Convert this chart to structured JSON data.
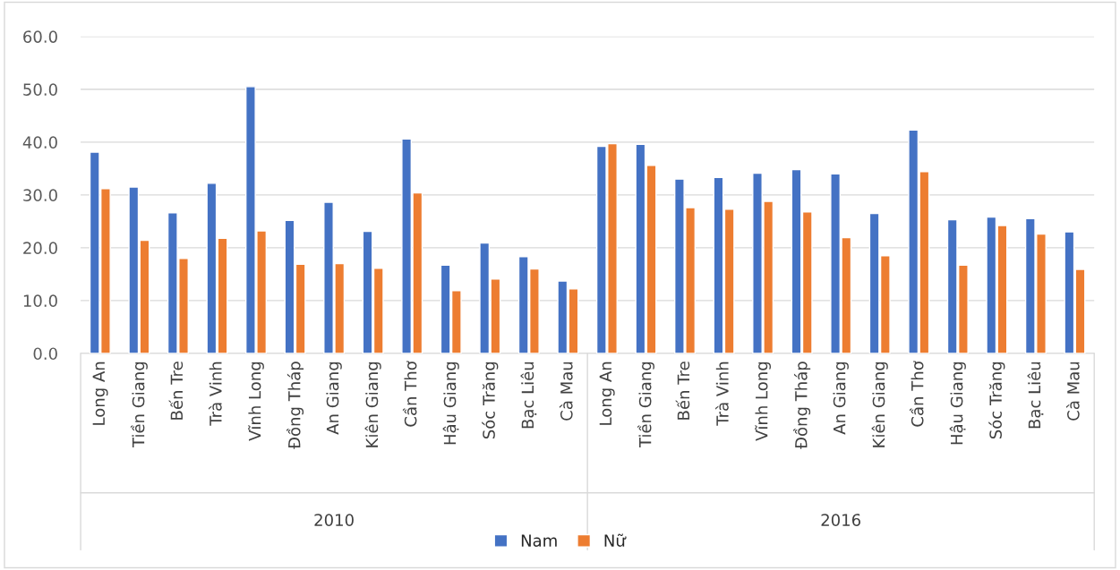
{
  "chart_data": {
    "type": "bar",
    "categories": [
      "Long An",
      "Tiền Giang",
      "Bến Tre",
      "Trà Vinh",
      "Vĩnh Long",
      "Đồng Tháp",
      "An Giang",
      "Kiên Giang",
      "Cần Thơ",
      "Hậu Giang",
      "Sóc Trăng",
      "Bạc Liêu",
      "Cà Mau",
      "Long An",
      "Tiền Giang",
      "Bến Tre",
      "Trà Vinh",
      "Vĩnh Long",
      "Đồng Tháp",
      "An Giang",
      "Kiên Giang",
      "Cần Thơ",
      "Hậu Giang",
      "Sóc Trăng",
      "Bạc Liêu",
      "Cà Mau"
    ],
    "series": [
      {
        "name": "Nam",
        "color": "#4472c4",
        "values": [
          38.1,
          31.5,
          26.6,
          32.2,
          50.5,
          25.2,
          28.6,
          23.1,
          40.6,
          16.7,
          20.9,
          18.3,
          13.7,
          39.2,
          39.6,
          33.0,
          33.3,
          34.1,
          34.8,
          34.0,
          26.5,
          42.3,
          25.3,
          25.8,
          25.5,
          23.0
        ]
      },
      {
        "name": "Nữ",
        "color": "#ed7d31",
        "values": [
          31.2,
          21.4,
          18.0,
          21.8,
          23.2,
          16.9,
          17.0,
          16.1,
          30.4,
          11.9,
          14.1,
          16.0,
          12.2,
          39.7,
          35.6,
          27.6,
          27.3,
          28.8,
          26.8,
          21.9,
          18.5,
          34.4,
          16.7,
          24.2,
          22.6,
          15.9
        ]
      }
    ],
    "annotations": [
      "2010",
      "2016"
    ],
    "ylim": [
      0,
      60
    ],
    "yticks": [
      {
        "value": 0,
        "label": "0.0"
      },
      {
        "value": 10,
        "label": "10.0"
      },
      {
        "value": 20,
        "label": "20.0"
      },
      {
        "value": 30,
        "label": "30.0"
      },
      {
        "value": 40,
        "label": "40.0"
      },
      {
        "value": 50,
        "label": "50.0"
      },
      {
        "value": 60,
        "label": "60.0"
      }
    ],
    "grid": "y",
    "legend": "bottom"
  }
}
